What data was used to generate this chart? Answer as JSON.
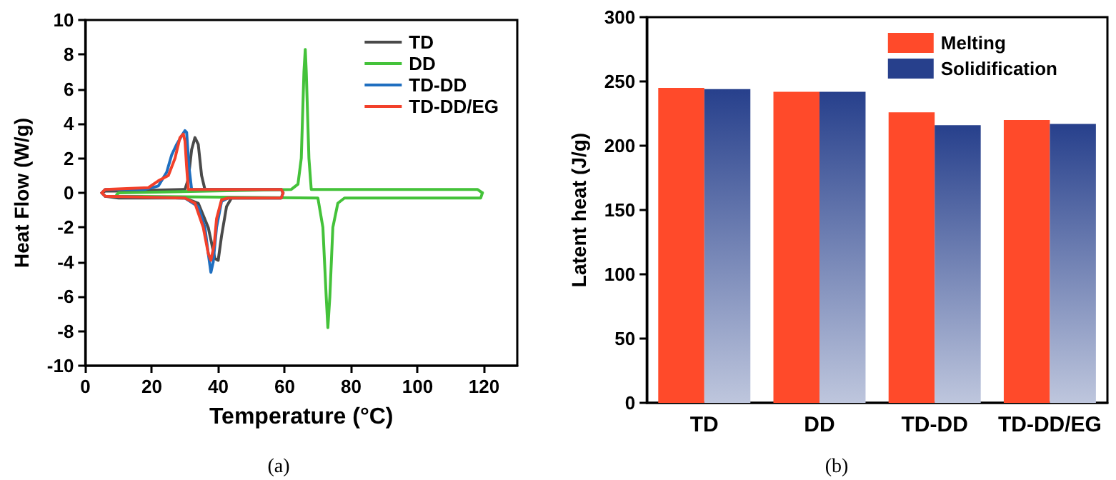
{
  "chart_data": [
    {
      "type": "line",
      "xlabel": "Temperature (°C)",
      "ylabel": "Heat Flow (W/g)",
      "xlim": [
        0,
        130
      ],
      "xticks": [
        0,
        20,
        40,
        60,
        80,
        100,
        120
      ],
      "ylim": [
        -10,
        10
      ],
      "yticks": [
        -10,
        -8,
        -6,
        -4,
        -2,
        0,
        2,
        4,
        6,
        8,
        10
      ],
      "grid": false,
      "legend": "top right",
      "marker": "none",
      "annotations": [
        "(a)"
      ],
      "series": [
        {
          "name": "TD",
          "color": "#4a4a4a",
          "x": [
            5,
            6,
            10,
            30,
            31,
            32,
            33,
            34,
            35,
            36,
            59,
            59.5
          ],
          "values": [
            0,
            0.1,
            0.1,
            0.2,
            0.8,
            2.5,
            3.2,
            2.8,
            1.0,
            0.2,
            0.2,
            0
          ]
        },
        {
          "color": "#4a4a4a",
          "x": [
            5,
            6,
            10,
            30,
            34,
            37,
            39,
            40,
            41,
            42.5,
            44,
            59,
            59.5
          ],
          "values": [
            0,
            -0.2,
            -0.3,
            -0.3,
            -0.6,
            -2,
            -3.8,
            -3.9,
            -2.5,
            -0.8,
            -0.3,
            -0.3,
            0
          ]
        },
        {
          "name": "DD",
          "color": "#44c23a",
          "x": [
            9.5,
            10,
            62,
            64,
            65,
            65.8,
            66.2,
            66.5,
            67.3,
            68,
            118,
            119.5
          ],
          "values": [
            -0.1,
            0,
            0.2,
            0.5,
            2,
            7,
            8.3,
            7,
            2,
            0.2,
            0.2,
            0
          ]
        },
        {
          "color": "#44c23a",
          "x": [
            9.5,
            10,
            70,
            71.5,
            72.5,
            73,
            73.6,
            74.5,
            76,
            78,
            119,
            119.5
          ],
          "values": [
            -0.1,
            -0.2,
            -0.3,
            -2,
            -6,
            -7.8,
            -6,
            -2,
            -0.6,
            -0.3,
            -0.3,
            0
          ]
        },
        {
          "name": "TD-DD",
          "color": "#1f6fc0",
          "x": [
            5,
            6,
            18,
            22,
            24.5,
            26,
            27.5,
            29,
            30,
            30.5,
            31.2,
            32,
            59,
            59.5
          ],
          "values": [
            0,
            0.2,
            0.2,
            0.4,
            1.2,
            2.2,
            2.8,
            3.3,
            3.6,
            3.5,
            1.5,
            0.2,
            0.2,
            0
          ]
        },
        {
          "color": "#1f6fc0",
          "x": [
            5,
            6,
            30,
            34,
            36,
            37,
            37.8,
            38.5,
            39.5,
            41,
            43,
            59,
            59.5
          ],
          "values": [
            0,
            -0.2,
            -0.3,
            -0.8,
            -2,
            -3.5,
            -4.6,
            -4,
            -2,
            -0.5,
            -0.3,
            -0.3,
            0
          ]
        },
        {
          "name": "TD-DD/EG",
          "color": "#f2402a",
          "x": [
            5,
            6,
            19,
            22,
            25,
            27,
            28.5,
            29.5,
            30,
            30.5,
            31,
            59,
            59.5
          ],
          "values": [
            0,
            0.2,
            0.3,
            0.7,
            1,
            2,
            3.2,
            3.4,
            3,
            1.5,
            0.2,
            0.2,
            0
          ]
        },
        {
          "color": "#f2402a",
          "x": [
            5,
            6,
            30,
            33,
            35.5,
            37,
            37.8,
            38.8,
            39.5,
            41,
            43,
            59,
            59.5
          ],
          "values": [
            0,
            -0.2,
            -0.3,
            -0.6,
            -2,
            -3.5,
            -3.9,
            -3,
            -1.5,
            -0.4,
            -0.3,
            -0.3,
            0
          ]
        }
      ]
    },
    {
      "type": "bar",
      "ylabel": "Latent heat (J/g)",
      "categories": [
        "TD",
        "DD",
        "TD-DD",
        "TD-DD/EG"
      ],
      "ylim": [
        0,
        300
      ],
      "yticks": [
        0,
        50,
        100,
        150,
        200,
        250,
        300
      ],
      "grid": false,
      "legend": "top right",
      "annotations": [
        "(b)"
      ],
      "series": [
        {
          "name": "Melting",
          "color": "#ff4a2a",
          "values": [
            245,
            242,
            226,
            220
          ]
        },
        {
          "name": "Solidification",
          "color": "#27408c",
          "values": [
            244,
            242,
            216,
            217
          ]
        }
      ]
    }
  ]
}
